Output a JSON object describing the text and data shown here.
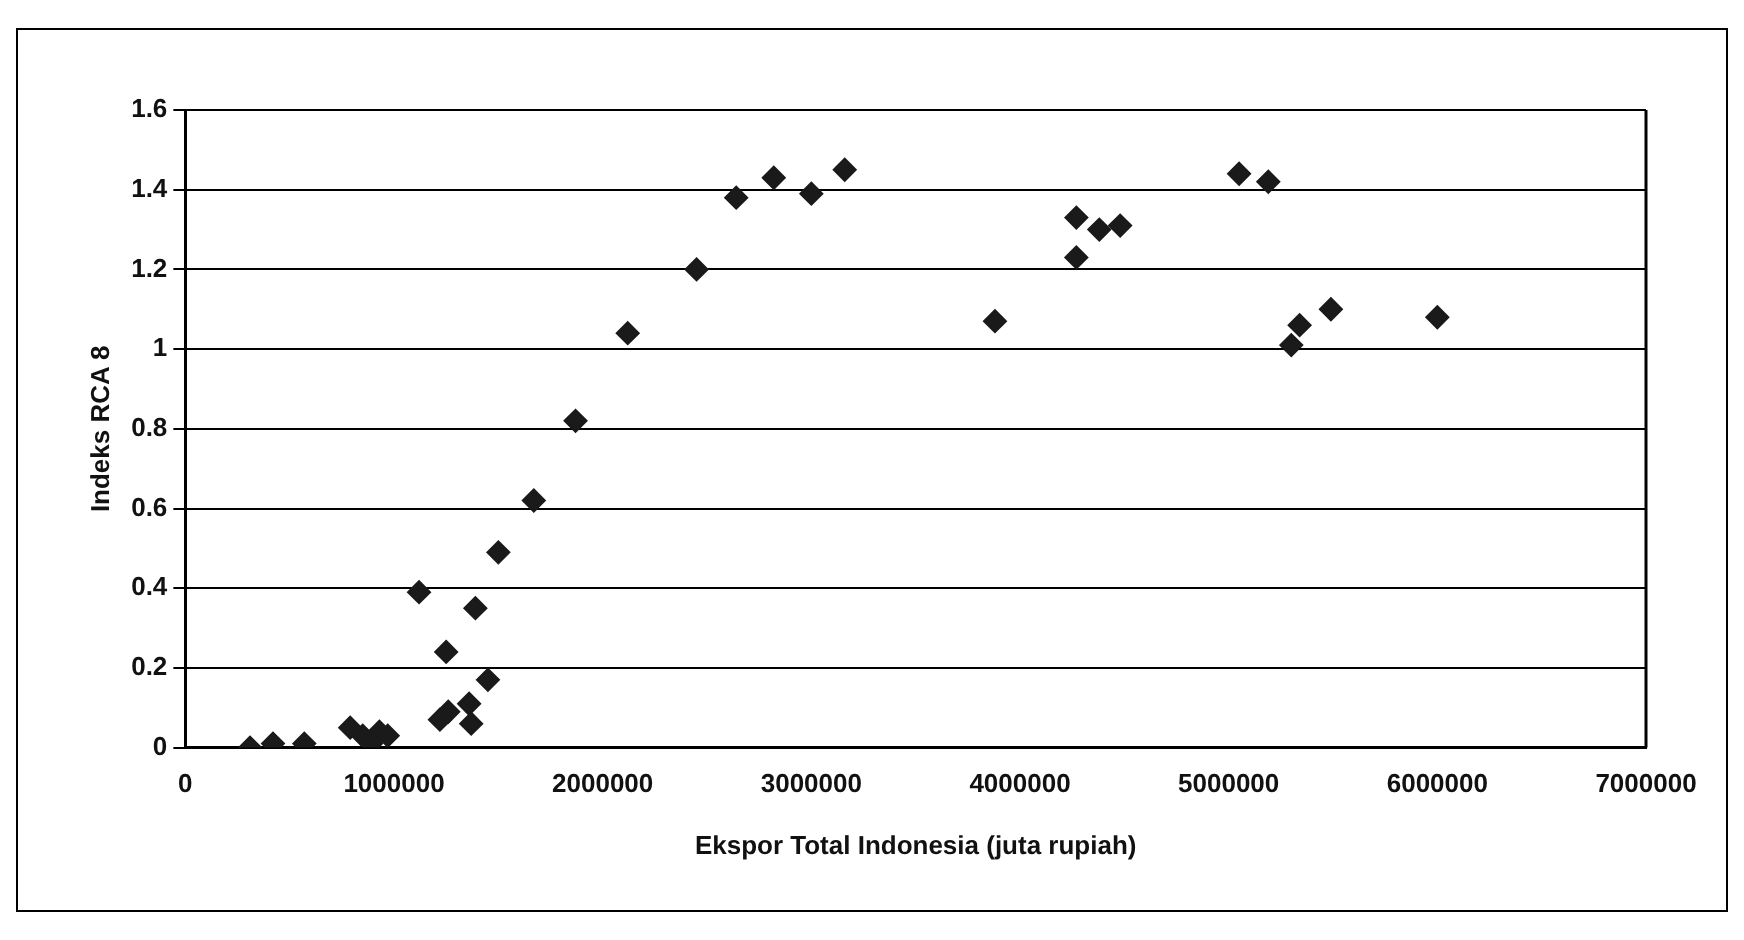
{
  "chart_data": {
    "type": "scatter",
    "xlabel": "Ekspor Total Indonesia (juta rupiah)",
    "ylabel": "Indeks RCA 8",
    "x": [
      310000,
      420000,
      570000,
      790000,
      850000,
      890000,
      930000,
      970000,
      1120000,
      1250000,
      1390000,
      1500000,
      1220000,
      1260000,
      1360000,
      1370000,
      1450000,
      1670000,
      1870000,
      2120000,
      2450000,
      2640000,
      2820000,
      3000000,
      3160000,
      3880000,
      4270000,
      4270000,
      4380000,
      4480000,
      5050000,
      5190000,
      5300000,
      5340000,
      5490000,
      6000000
    ],
    "series": [
      {
        "color": "#1a1a1a",
        "values": [
          0,
          0.01,
          0.01,
          0.05,
          0.03,
          0.01,
          0.04,
          0.03,
          0.39,
          0.24,
          0.35,
          0.49,
          0.07,
          0.09,
          0.11,
          0.06,
          0.17,
          0.62,
          0.82,
          1.04,
          1.2,
          1.38,
          1.43,
          1.39,
          1.45,
          1.07,
          1.33,
          1.23,
          1.3,
          1.31,
          1.44,
          1.42,
          1.01,
          1.06,
          1.1,
          1.08
        ]
      }
    ],
    "xlim": [
      0,
      7000000
    ],
    "xticks": [
      0,
      1000000,
      2000000,
      3000000,
      4000000,
      5000000,
      6000000,
      7000000
    ],
    "ylim": [
      0,
      1.6
    ],
    "yticks": [
      0,
      0.2,
      0.4,
      0.6,
      0.8,
      1,
      1.2,
      1.4,
      1.6
    ],
    "grid": "y",
    "legend": false,
    "marker": "diamond"
  }
}
